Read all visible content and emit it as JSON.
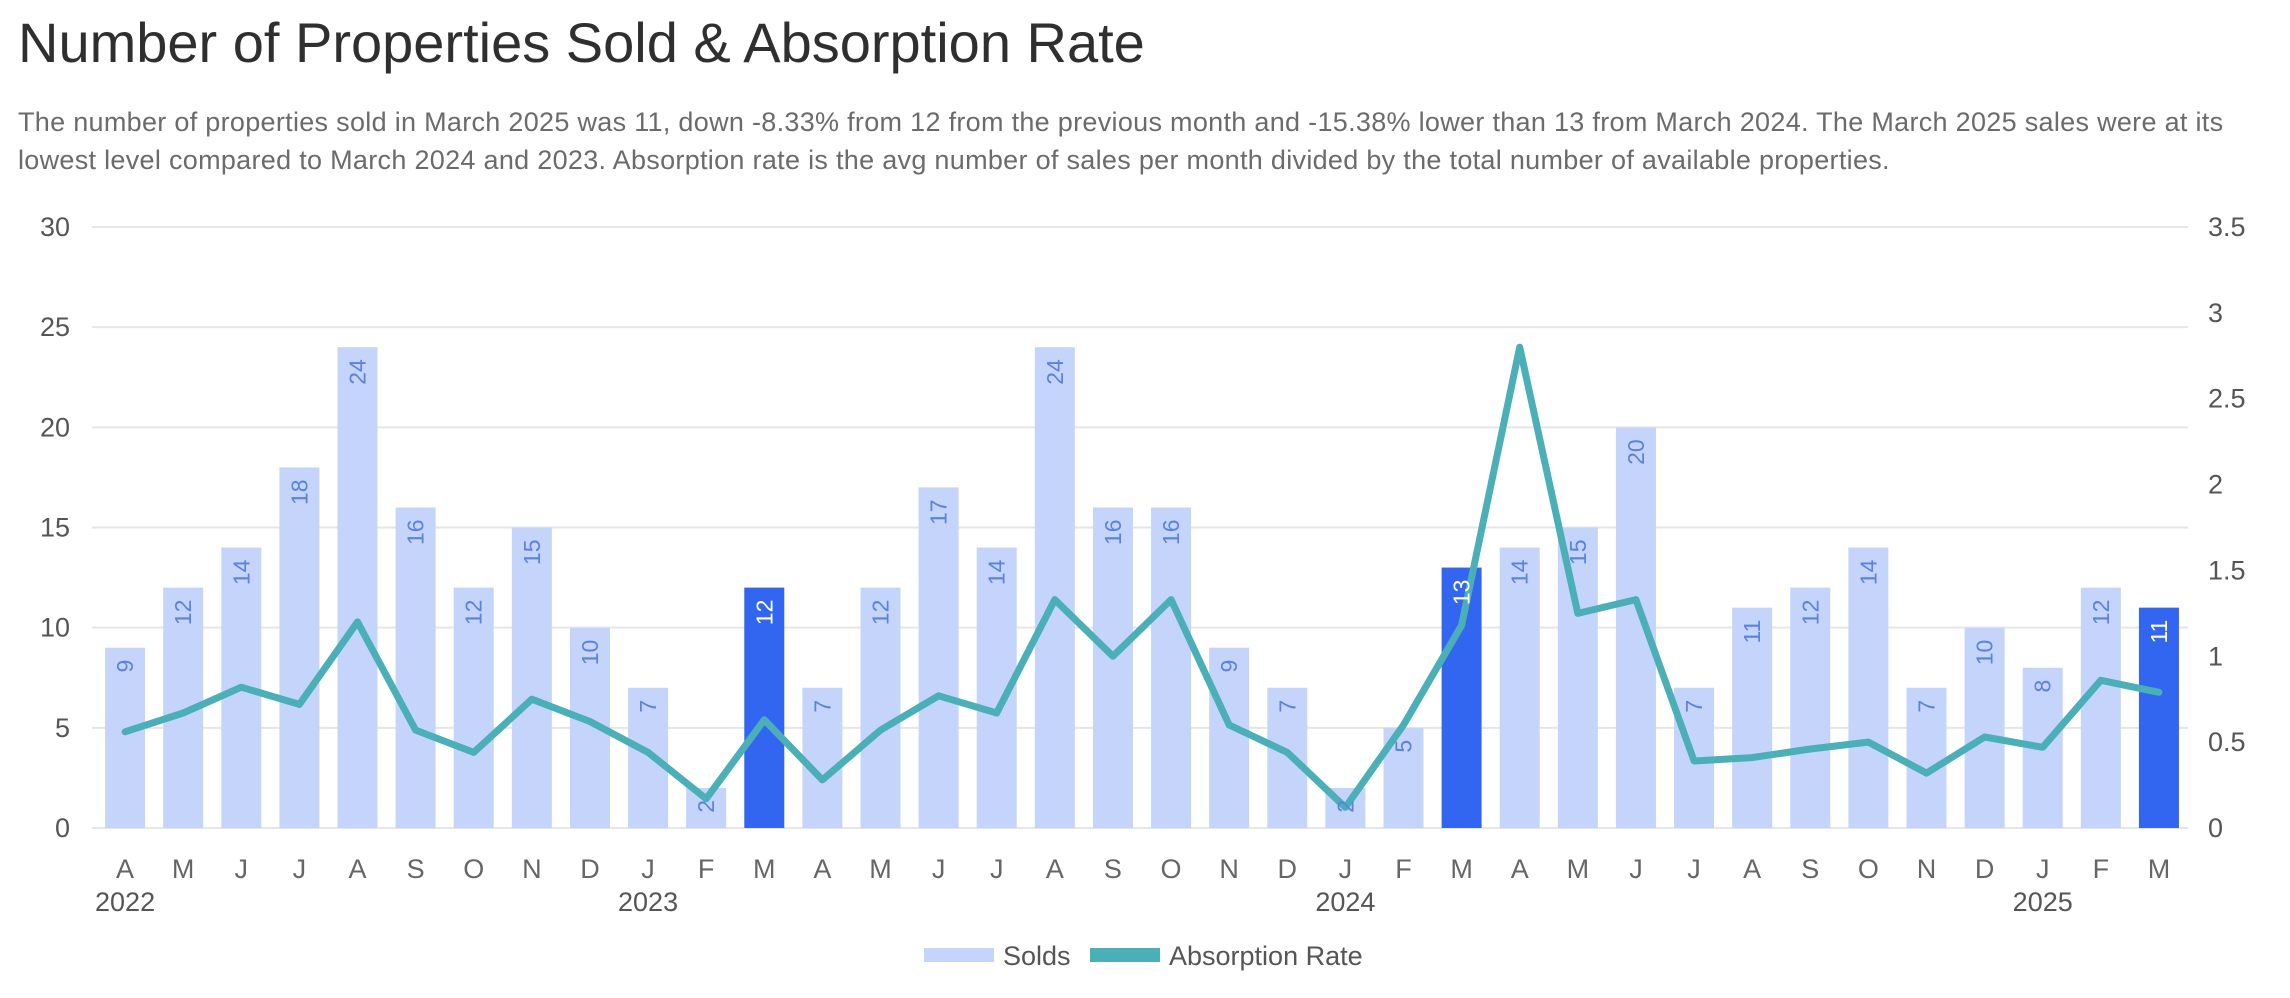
{
  "header": {
    "title": "Number of Properties Sold & Absorption Rate",
    "subtitle": "The number of properties sold in March 2025 was 11, down -8.33% from 12 from the previous month and -15.38% lower than 13 from March 2024. The March 2025 sales were at its lowest level compared to March 2024 and 2023. Absorption rate is the avg number of sales per month divided by the total number of available properties."
  },
  "colors": {
    "bar": "#c5d4fa",
    "bar_highlight": "#3366f0",
    "bar_label": "#5a82de",
    "bar_label_highlight": "#ffffff",
    "line": "#4bafb8",
    "grid": "#e6e6e6"
  },
  "chart_data": {
    "type": "bar",
    "title": "Number of Properties Sold & Absorption Rate",
    "categories": [
      "A",
      "M",
      "J",
      "J",
      "A",
      "S",
      "O",
      "N",
      "D",
      "J",
      "F",
      "M",
      "A",
      "M",
      "J",
      "J",
      "A",
      "S",
      "O",
      "N",
      "D",
      "J",
      "F",
      "M",
      "A",
      "M",
      "J",
      "J",
      "A",
      "S",
      "O",
      "N",
      "D",
      "J",
      "F",
      "M"
    ],
    "year_labels": [
      {
        "index": 0,
        "label": "2022"
      },
      {
        "index": 9,
        "label": "2023"
      },
      {
        "index": 21,
        "label": "2024"
      },
      {
        "index": 33,
        "label": "2025"
      }
    ],
    "highlight_indices": [
      11,
      23,
      35
    ],
    "ylim_left": [
      0,
      30
    ],
    "yticks_left": [
      0,
      5,
      10,
      15,
      20,
      25,
      30
    ],
    "ylim_right": [
      0,
      3.5
    ],
    "yticks_right": [
      "0",
      "0.5",
      "1",
      "1.5",
      "2",
      "2.5",
      "3",
      "3.5"
    ],
    "series": [
      {
        "name": "Solds",
        "type": "bar",
        "axis": "left",
        "values": [
          9,
          12,
          14,
          18,
          24,
          16,
          12,
          15,
          10,
          7,
          2,
          12,
          7,
          12,
          17,
          14,
          24,
          16,
          16,
          9,
          7,
          2,
          5,
          13,
          14,
          15,
          20,
          7,
          11,
          12,
          14,
          7,
          10,
          8,
          12,
          11
        ]
      },
      {
        "name": "Absorption Rate",
        "type": "line",
        "axis": "right",
        "values": [
          0.56,
          0.67,
          0.82,
          0.72,
          1.2,
          0.57,
          0.44,
          0.75,
          0.62,
          0.44,
          0.17,
          0.63,
          0.28,
          0.57,
          0.77,
          0.67,
          1.33,
          1.0,
          1.33,
          0.6,
          0.44,
          0.12,
          0.6,
          1.18,
          2.8,
          1.25,
          1.33,
          0.39,
          0.41,
          0.46,
          0.5,
          0.32,
          0.53,
          0.47,
          0.86,
          0.79
        ]
      }
    ],
    "legend": [
      "Solds",
      "Absorption Rate"
    ],
    "legend_position": "bottom-center",
    "grid": true
  }
}
